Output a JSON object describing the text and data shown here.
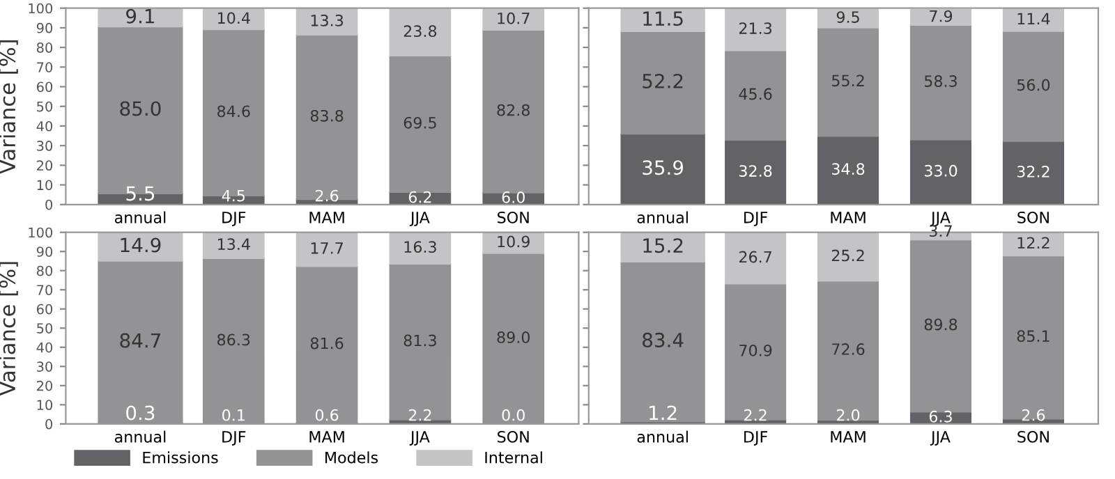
{
  "chart_data": [
    {
      "type": "bar",
      "stacked": true,
      "ylabel": "Variance [%]",
      "categories": [
        "annual",
        "DJF",
        "MAM",
        "JJA",
        "SON"
      ],
      "ylim": [
        0,
        100
      ],
      "yticks": [
        0,
        10,
        20,
        30,
        40,
        50,
        60,
        70,
        80,
        90,
        100
      ],
      "legend": false,
      "grid": false,
      "series": [
        {
          "color": "#636266",
          "values": [
            5.5,
            4.5,
            2.6,
            6.2,
            6.0
          ],
          "value_labels": [
            "5.5",
            "4.5",
            "2.6",
            "6.2",
            "6.0"
          ]
        },
        {
          "color": "#939395",
          "values": [
            85.0,
            84.6,
            83.8,
            69.5,
            82.8
          ],
          "value_labels": [
            "85.0",
            "84.6",
            "83.8",
            "69.5",
            "82.8"
          ]
        },
        {
          "color": "#c4c4c6",
          "values": [
            9.1,
            10.4,
            13.3,
            23.8,
            10.7
          ],
          "value_labels": [
            "9.1",
            "10.4",
            "13.3",
            "23.8",
            "10.7"
          ]
        }
      ]
    },
    {
      "type": "bar",
      "stacked": true,
      "categories": [
        "annual",
        "DJF",
        "MAM",
        "JJA",
        "SON"
      ],
      "ylim": [
        0,
        100
      ],
      "yticks": [
        {
          "value": 0,
          "label": null
        },
        {
          "value": 10,
          "label": null
        },
        {
          "value": 20,
          "label": null
        },
        {
          "value": 30,
          "label": null
        },
        {
          "value": 40,
          "label": null
        },
        {
          "value": 50,
          "label": null
        },
        {
          "value": 60,
          "label": null
        },
        {
          "value": 70,
          "label": null
        },
        {
          "value": 80,
          "label": null
        },
        {
          "value": 90,
          "label": null
        },
        {
          "value": 100,
          "label": null
        }
      ],
      "tick_labels": "x",
      "legend": false,
      "grid": false,
      "series": [
        {
          "color": "#636266",
          "values": [
            35.9,
            32.8,
            34.8,
            33.0,
            32.2
          ],
          "value_labels": [
            "35.9",
            "32.8",
            "34.8",
            "33.0",
            "32.2"
          ]
        },
        {
          "color": "#939395",
          "values": [
            52.2,
            45.6,
            55.2,
            58.3,
            56.0
          ],
          "value_labels": [
            "52.2",
            "45.6",
            "55.2",
            "58.3",
            "56.0"
          ]
        },
        {
          "color": "#c4c4c6",
          "values": [
            11.5,
            21.3,
            9.5,
            7.9,
            11.4
          ],
          "value_labels": [
            "11.5",
            "21.3",
            "9.5",
            "7.9",
            "11.4"
          ]
        }
      ]
    },
    {
      "type": "bar",
      "stacked": true,
      "ylabel": "Variance [%]",
      "categories": [
        "annual",
        "DJF",
        "MAM",
        "JJA",
        "SON"
      ],
      "ylim": [
        0,
        100
      ],
      "yticks": [
        0,
        10,
        20,
        30,
        40,
        50,
        60,
        70,
        80,
        90,
        100
      ],
      "legend": "bottom",
      "grid": false,
      "series": [
        {
          "name": "Emissions",
          "color": "#636266",
          "values": [
            0.3,
            0.1,
            0.6,
            2.2,
            0.0
          ],
          "value_labels": [
            "0.3",
            "0.1",
            "0.6",
            "2.2",
            "0.0"
          ]
        },
        {
          "name": "Models",
          "color": "#939395",
          "values": [
            84.7,
            86.3,
            81.6,
            81.3,
            89.0
          ],
          "value_labels": [
            "84.7",
            "86.3",
            "81.6",
            "81.3",
            "89.0"
          ]
        },
        {
          "name": "Internal",
          "color": "#c4c4c6",
          "values": [
            14.9,
            13.4,
            17.7,
            16.3,
            10.9
          ],
          "value_labels": [
            "14.9",
            "13.4",
            "17.7",
            "16.3",
            "10.9"
          ]
        }
      ]
    },
    {
      "type": "bar",
      "stacked": true,
      "categories": [
        "annual",
        "DJF",
        "MAM",
        "JJA",
        "SON"
      ],
      "ylim": [
        0,
        100
      ],
      "yticks": [
        {
          "value": 0,
          "label": null
        },
        {
          "value": 10,
          "label": null
        },
        {
          "value": 20,
          "label": null
        },
        {
          "value": 30,
          "label": null
        },
        {
          "value": 40,
          "label": null
        },
        {
          "value": 50,
          "label": null
        },
        {
          "value": 60,
          "label": null
        },
        {
          "value": 70,
          "label": null
        },
        {
          "value": 80,
          "label": null
        },
        {
          "value": 90,
          "label": null
        },
        {
          "value": 100,
          "label": null
        }
      ],
      "tick_labels": "x",
      "legend": false,
      "grid": false,
      "series": [
        {
          "color": "#636266",
          "values": [
            1.2,
            2.2,
            2.0,
            6.3,
            2.6
          ],
          "value_labels": [
            "1.2",
            "2.2",
            "2.0",
            "6.3",
            "2.6"
          ]
        },
        {
          "color": "#939395",
          "values": [
            83.4,
            70.9,
            72.6,
            89.8,
            85.1
          ],
          "value_labels": [
            "83.4",
            "70.9",
            "72.6",
            "89.8",
            "85.1"
          ]
        },
        {
          "color": "#c4c4c6",
          "values": [
            15.2,
            26.7,
            25.2,
            3.7,
            12.2
          ],
          "value_labels": [
            "15.2",
            "26.7",
            "25.2",
            "3.7",
            "12.2"
          ]
        }
      ]
    }
  ]
}
